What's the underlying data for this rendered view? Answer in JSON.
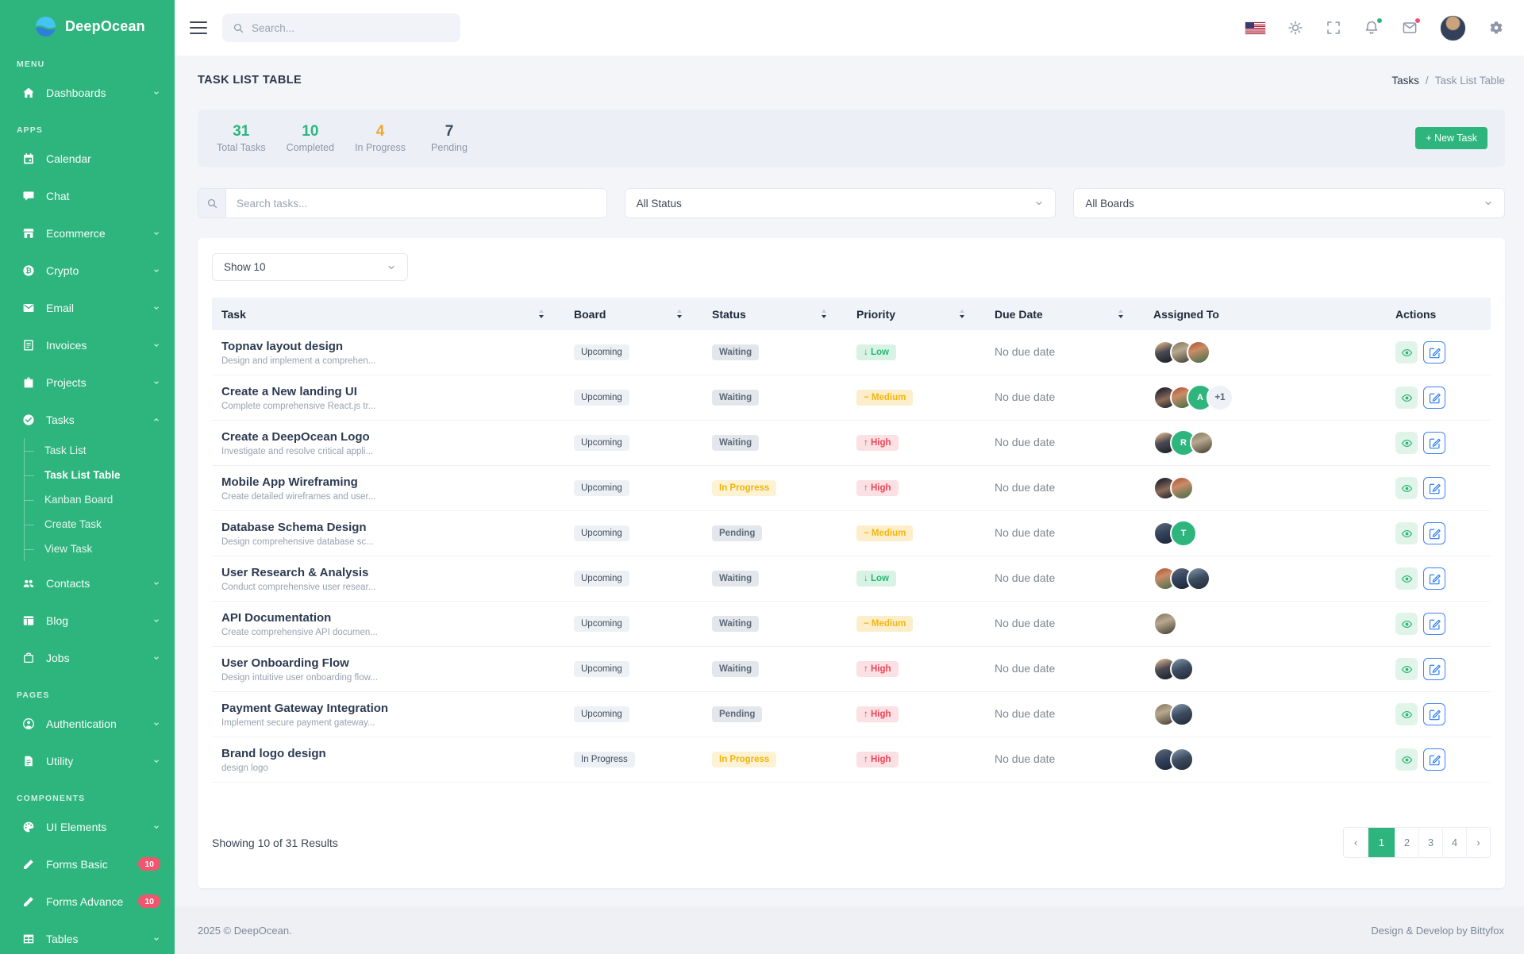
{
  "brand": {
    "name": "DeepOcean"
  },
  "topbar": {
    "search_placeholder": "Search..."
  },
  "page": {
    "title": "TASK LIST TABLE",
    "breadcrumb": {
      "parent": "Tasks",
      "separator": "/",
      "current": "Task List Table"
    }
  },
  "stats": [
    {
      "value": "31",
      "label": "Total Tasks",
      "color": "#2eb57d"
    },
    {
      "value": "10",
      "label": "Completed",
      "color": "#2eb57d"
    },
    {
      "value": "4",
      "label": "In Progress",
      "color": "#f0a62a"
    },
    {
      "value": "7",
      "label": "Pending",
      "color": "#3d4a5c"
    }
  ],
  "new_task_button": "+ New Task",
  "filters": {
    "search_placeholder": "Search tasks...",
    "status": "All Status",
    "boards": "All Boards"
  },
  "table": {
    "show_select": "Show 10",
    "columns": [
      {
        "label": "Task",
        "sortable": true
      },
      {
        "label": "Board",
        "sortable": true
      },
      {
        "label": "Status",
        "sortable": true
      },
      {
        "label": "Priority",
        "sortable": true
      },
      {
        "label": "Due Date",
        "sortable": true
      },
      {
        "label": "Assigned To",
        "sortable": false
      },
      {
        "label": "Actions",
        "sortable": false
      }
    ],
    "rows": [
      {
        "task": "Topnav layout design",
        "description": "Design and implement a comprehen...",
        "board": "Upcoming",
        "status": "Waiting",
        "status_type": "muted",
        "priority": "Low",
        "priority_type": "low",
        "due_date": "No due date",
        "assignees": [
          {
            "kind": "photo",
            "variant": "p1"
          },
          {
            "kind": "photo",
            "variant": "p2"
          },
          {
            "kind": "photo",
            "variant": "p3"
          }
        ]
      },
      {
        "task": "Create a New landing UI",
        "description": "Complete comprehensive React.js tr...",
        "board": "Upcoming",
        "status": "Waiting",
        "status_type": "muted",
        "priority": "Medium",
        "priority_type": "medium",
        "due_date": "No due date",
        "assignees": [
          {
            "kind": "photo",
            "variant": "p4"
          },
          {
            "kind": "photo",
            "variant": "p3"
          },
          {
            "kind": "initial",
            "label": "A"
          },
          {
            "kind": "more",
            "label": "+1"
          }
        ]
      },
      {
        "task": "Create a DeepOcean Logo",
        "description": "Investigate and resolve critical appli...",
        "board": "Upcoming",
        "status": "Waiting",
        "status_type": "muted",
        "priority": "High",
        "priority_type": "high",
        "due_date": "No due date",
        "assignees": [
          {
            "kind": "photo",
            "variant": "p1"
          },
          {
            "kind": "initial",
            "label": "R"
          },
          {
            "kind": "photo",
            "variant": "p2"
          }
        ]
      },
      {
        "task": "Mobile App Wireframing",
        "description": "Create detailed wireframes and user...",
        "board": "Upcoming",
        "status": "In Progress",
        "status_type": "progress",
        "priority": "High",
        "priority_type": "high",
        "due_date": "No due date",
        "assignees": [
          {
            "kind": "photo",
            "variant": "p4"
          },
          {
            "kind": "photo",
            "variant": "p3"
          }
        ]
      },
      {
        "task": "Database Schema Design",
        "description": "Design comprehensive database sc...",
        "board": "Upcoming",
        "status": "Pending",
        "status_type": "muted",
        "priority": "Medium",
        "priority_type": "medium",
        "due_date": "No due date",
        "assignees": [
          {
            "kind": "photo",
            "variant": "p5"
          },
          {
            "kind": "initial",
            "label": "T"
          }
        ]
      },
      {
        "task": "User Research & Analysis",
        "description": "Conduct comprehensive user resear...",
        "board": "Upcoming",
        "status": "Waiting",
        "status_type": "muted",
        "priority": "Low",
        "priority_type": "low",
        "due_date": "No due date",
        "assignees": [
          {
            "kind": "photo",
            "variant": "p3"
          },
          {
            "kind": "photo",
            "variant": "p5"
          },
          {
            "kind": "photo",
            "variant": "p6"
          }
        ]
      },
      {
        "task": "API Documentation",
        "description": "Create comprehensive API documen...",
        "board": "Upcoming",
        "status": "Waiting",
        "status_type": "muted",
        "priority": "Medium",
        "priority_type": "medium",
        "due_date": "No due date",
        "assignees": [
          {
            "kind": "photo",
            "variant": "p2"
          }
        ]
      },
      {
        "task": "User Onboarding Flow",
        "description": "Design intuitive user onboarding flow...",
        "board": "Upcoming",
        "status": "Waiting",
        "status_type": "muted",
        "priority": "High",
        "priority_type": "high",
        "due_date": "No due date",
        "assignees": [
          {
            "kind": "photo",
            "variant": "p1"
          },
          {
            "kind": "photo",
            "variant": "p6"
          }
        ]
      },
      {
        "task": "Payment Gateway Integration",
        "description": "Implement secure payment gateway...",
        "board": "Upcoming",
        "status": "Pending",
        "status_type": "muted",
        "priority": "High",
        "priority_type": "high",
        "due_date": "No due date",
        "assignees": [
          {
            "kind": "photo",
            "variant": "p2"
          },
          {
            "kind": "photo",
            "variant": "p6"
          }
        ]
      },
      {
        "task": "Brand logo design",
        "description": "design logo",
        "board": "In Progress",
        "status": "In Progress",
        "status_type": "progress",
        "priority": "High",
        "priority_type": "high",
        "due_date": "No due date",
        "assignees": [
          {
            "kind": "photo",
            "variant": "p5"
          },
          {
            "kind": "photo",
            "variant": "p6"
          }
        ]
      }
    ],
    "summary": "Showing 10 of 31 Results",
    "pagination": {
      "prev": "‹",
      "pages": [
        "1",
        "2",
        "3",
        "4"
      ],
      "active": "1",
      "next": "›"
    }
  },
  "footer": {
    "copyright": "2025 © DeepOcean.",
    "credit": "Design & Develop by Bittyfox"
  },
  "sidebar": {
    "sections": [
      {
        "label": "MENU",
        "items": [
          {
            "label": "Dashboards",
            "icon": "home",
            "chevron": "down"
          }
        ]
      },
      {
        "label": "APPS",
        "items": [
          {
            "label": "Calendar",
            "icon": "calendar"
          },
          {
            "label": "Chat",
            "icon": "chat"
          },
          {
            "label": "Ecommerce",
            "icon": "store",
            "chevron": "down"
          },
          {
            "label": "Crypto",
            "icon": "bitcoin",
            "chevron": "down"
          },
          {
            "label": "Email",
            "icon": "mail",
            "chevron": "down"
          },
          {
            "label": "Invoices",
            "icon": "invoice",
            "chevron": "down"
          },
          {
            "label": "Projects",
            "icon": "briefcase",
            "chevron": "down"
          },
          {
            "label": "Tasks",
            "icon": "check",
            "chevron": "up",
            "subitems": [
              {
                "label": "Task List"
              },
              {
                "label": "Task List Table",
                "active": true
              },
              {
                "label": "Kanban Board"
              },
              {
                "label": "Create Task"
              },
              {
                "label": "View Task"
              }
            ]
          },
          {
            "label": "Contacts",
            "icon": "users",
            "chevron": "down"
          },
          {
            "label": "Blog",
            "icon": "blog",
            "chevron": "down"
          },
          {
            "label": "Jobs",
            "icon": "jobs",
            "chevron": "down"
          }
        ]
      },
      {
        "label": "PAGES",
        "items": [
          {
            "label": "Authentication",
            "icon": "auth",
            "chevron": "down"
          },
          {
            "label": "Utility",
            "icon": "file",
            "chevron": "down"
          }
        ]
      },
      {
        "label": "COMPONENTS",
        "items": [
          {
            "label": "UI Elements",
            "icon": "palette",
            "chevron": "down"
          },
          {
            "label": "Forms Basic",
            "icon": "pencil",
            "badge": "10"
          },
          {
            "label": "Forms Advance",
            "icon": "pencil",
            "badge": "10"
          },
          {
            "label": "Tables",
            "icon": "table",
            "chevron": "down"
          }
        ]
      }
    ]
  }
}
